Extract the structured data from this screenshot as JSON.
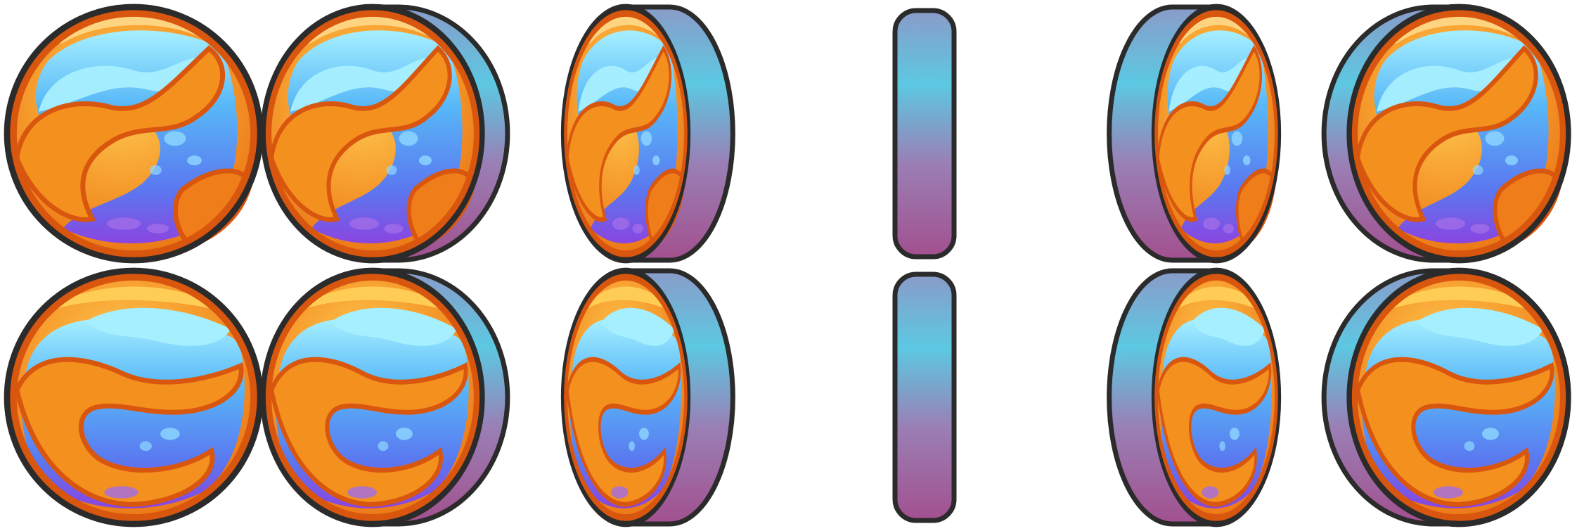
{
  "sprite_sheet": {
    "description_colors": {
      "outline": "#2b2b2b",
      "orange_light": "#f7b23a",
      "orange_mid": "#f28a1c",
      "orange_dark": "#d9560f",
      "blue_light": "#8fe6ff",
      "blue_mid": "#58b8f7",
      "blue_deep": "#5a78f0",
      "purple": "#8a45e0",
      "rim_top": "#5cc8e2",
      "rim_bottom": "#a2508e"
    },
    "rows": [
      {
        "name": "row-1",
        "variant": "swirl-a",
        "frames": [
          {
            "name": "coin-front",
            "view": "front",
            "rotation": 0
          },
          {
            "name": "coin-turn-1",
            "view": "turn-right",
            "rotation": 30
          },
          {
            "name": "coin-turn-2",
            "view": "turn-right",
            "rotation": 60
          },
          {
            "name": "coin-edge",
            "view": "edge",
            "rotation": 90
          },
          {
            "name": "coin-turn-3",
            "view": "turn-left",
            "rotation": 60
          },
          {
            "name": "coin-turn-4",
            "view": "turn-left",
            "rotation": 30
          }
        ]
      },
      {
        "name": "row-2",
        "variant": "swirl-b",
        "frames": [
          {
            "name": "coin-front",
            "view": "front",
            "rotation": 0
          },
          {
            "name": "coin-turn-1",
            "view": "turn-right",
            "rotation": 30
          },
          {
            "name": "coin-turn-2",
            "view": "turn-right",
            "rotation": 60
          },
          {
            "name": "coin-edge",
            "view": "edge",
            "rotation": 90
          },
          {
            "name": "coin-turn-3",
            "view": "turn-left",
            "rotation": 60
          },
          {
            "name": "coin-turn-4",
            "view": "turn-left",
            "rotation": 30
          }
        ]
      }
    ]
  }
}
